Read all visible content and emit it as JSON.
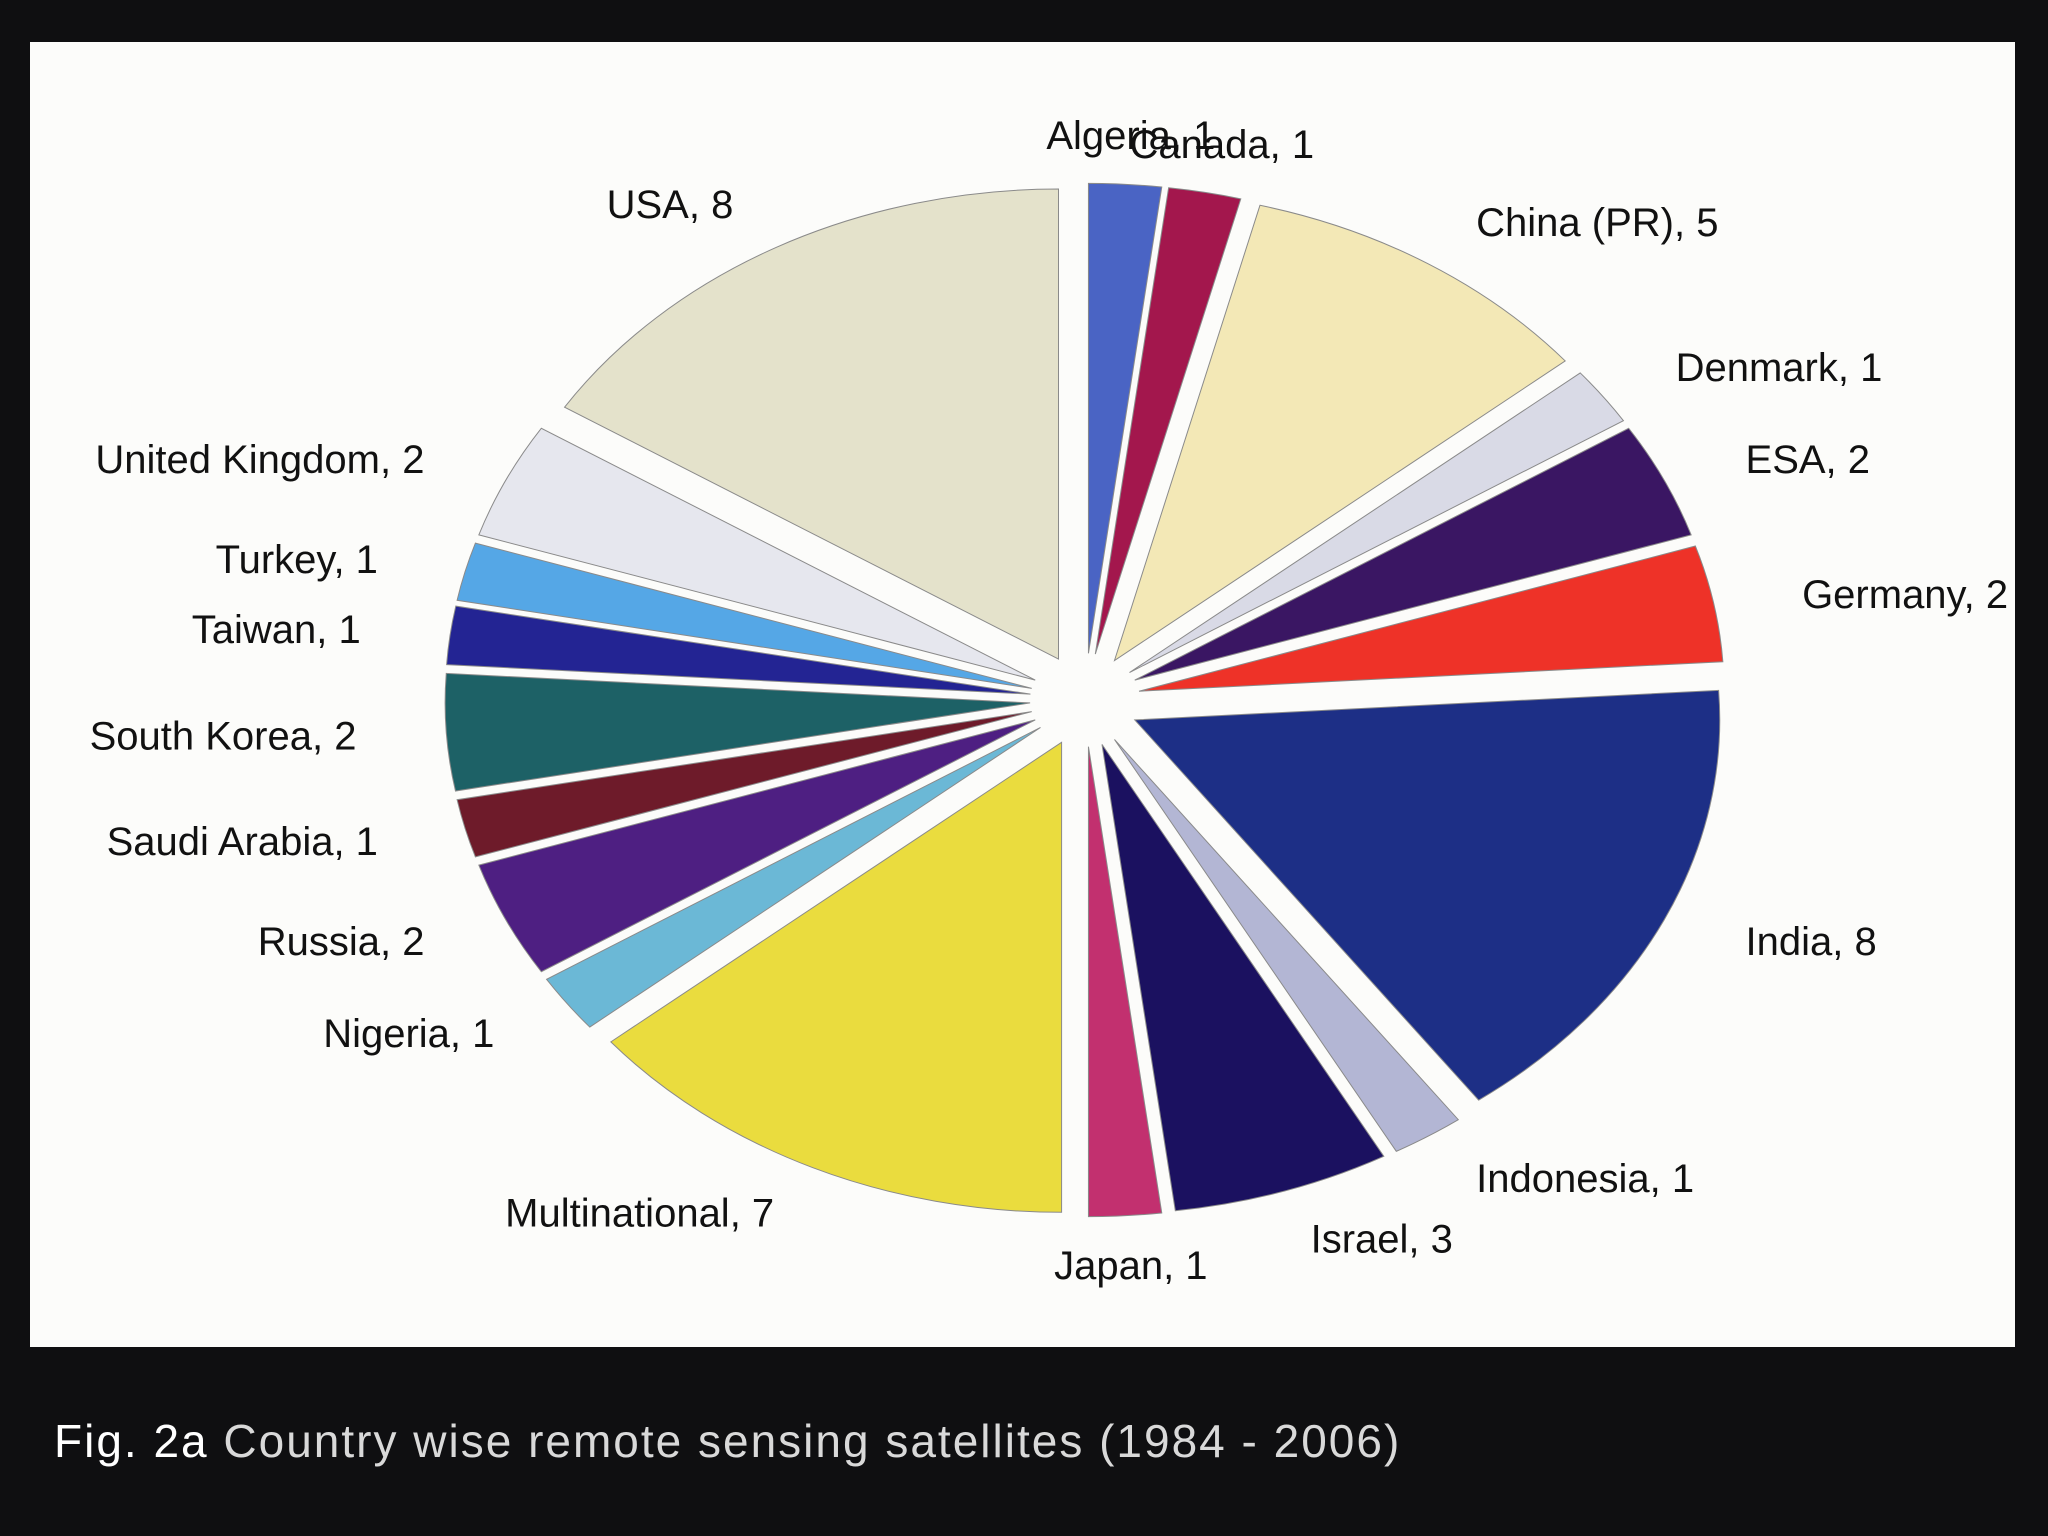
{
  "caption": {
    "label": "Fig. 2a",
    "text": "Country wise remote sensing satellites (1984 - 2006)"
  },
  "chart_data": {
    "type": "pie",
    "title": "",
    "unit": "satellites",
    "slices": [
      {
        "label": "Algeria, 1",
        "category": "Algeria",
        "value": 1,
        "color": "#4a64c4"
      },
      {
        "label": "Canada, 1",
        "category": "Canada",
        "value": 1,
        "color": "#a3174d"
      },
      {
        "label": "China (PR), 5",
        "category": "China (PR)",
        "value": 5,
        "color": "#f3e8b6"
      },
      {
        "label": "Denmark, 1",
        "category": "Denmark",
        "value": 1,
        "color": "#d9dae6"
      },
      {
        "label": "ESA, 2",
        "category": "ESA",
        "value": 2,
        "color": "#3a1663"
      },
      {
        "label": "Germany, 2",
        "category": "Germany",
        "value": 2,
        "color": "#ee3228"
      },
      {
        "label": "India, 8",
        "category": "India",
        "value": 8,
        "color": "#1d2f86"
      },
      {
        "label": "Indonesia, 1",
        "category": "Indonesia",
        "value": 1,
        "color": "#b3b6d4"
      },
      {
        "label": "Israel, 3",
        "category": "Israel",
        "value": 3,
        "color": "#1b1160",
        "label_color": "#e8363a"
      },
      {
        "label": "Japan, 1",
        "category": "Japan",
        "value": 1,
        "color": "#c2306f"
      },
      {
        "label": "Multinational, 7",
        "category": "Multinational",
        "value": 7,
        "color": "#eadc3e"
      },
      {
        "label": "Nigeria, 1",
        "category": "Nigeria",
        "value": 1,
        "color": "#6bb8d6"
      },
      {
        "label": "Russia, 2",
        "category": "Russia",
        "value": 2,
        "color": "#4e1f82"
      },
      {
        "label": "Saudi Arabia, 1",
        "category": "Saudi Arabia",
        "value": 1,
        "color": "#6e1b2a"
      },
      {
        "label": "South Korea, 2",
        "category": "South Korea",
        "value": 2,
        "color": "#1d6166"
      },
      {
        "label": "Taiwan, 1",
        "category": "Taiwan",
        "value": 1,
        "color": "#232493"
      },
      {
        "label": "Turkey, 1",
        "category": "Turkey",
        "value": 1,
        "color": "#55a7e6"
      },
      {
        "label": "United Kingdom, 2",
        "category": "United Kingdom",
        "value": 2,
        "color": "#e6e7ee"
      },
      {
        "label": "USA, 8",
        "category": "USA",
        "value": 8,
        "color": "#e4e2cb"
      }
    ],
    "start": "top",
    "direction": "clockwise",
    "exploded": true,
    "legend": "none"
  }
}
